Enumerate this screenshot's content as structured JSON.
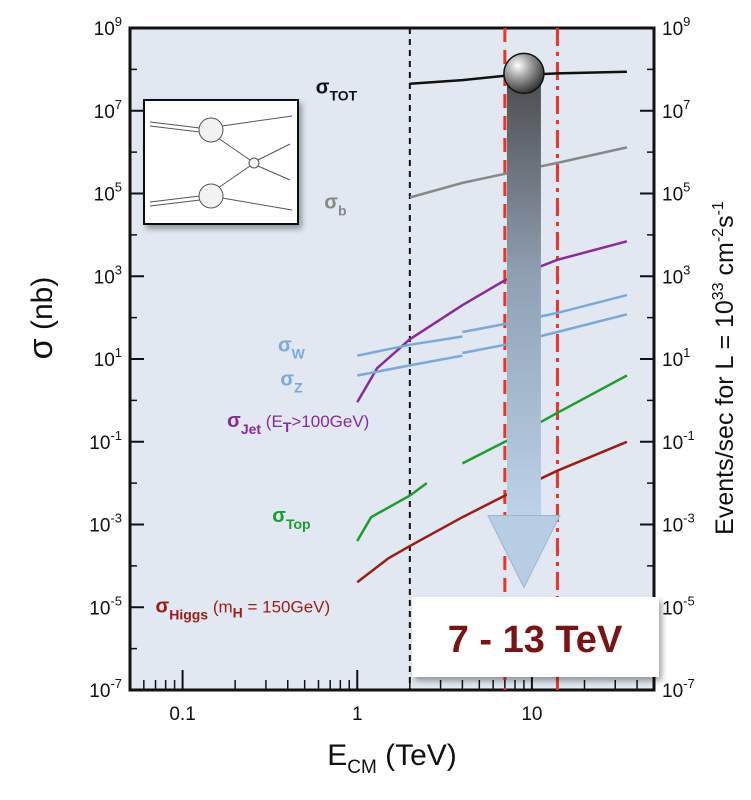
{
  "chart_data": {
    "type": "line",
    "title": "",
    "x_scale": "log",
    "y_scale": "log",
    "xlim": [
      0.05,
      50
    ],
    "ylim": [
      1e-07,
      1000000000.0
    ],
    "xlabel": {
      "main": "E",
      "sub": "CM",
      "unit": " (TeV)"
    },
    "ylabel_left": {
      "main": "σ",
      "unit": "  (nb)"
    },
    "ylabel_right": {
      "prefix": "Events/sec for L = 10",
      "exp1": "33",
      "mid": " cm",
      "exp2": "-2",
      "mid2": "s",
      "exp3": "-1"
    },
    "x_ticks": [
      {
        "value": 0.1,
        "label": "0.1"
      },
      {
        "value": 1,
        "label": "1"
      },
      {
        "value": 10,
        "label": "10"
      }
    ],
    "y_ticks": [
      {
        "value": 1000000000.0,
        "base": "10",
        "exp": "9"
      },
      {
        "value": 10000000.0,
        "base": "10",
        "exp": "7"
      },
      {
        "value": 100000.0,
        "base": "10",
        "exp": "5"
      },
      {
        "value": 1000.0,
        "base": "10",
        "exp": "3"
      },
      {
        "value": 10.0,
        "base": "10",
        "exp": "1"
      },
      {
        "value": 0.1,
        "base": "10",
        "exp": "-1"
      },
      {
        "value": 0.001,
        "base": "10",
        "exp": "-3"
      },
      {
        "value": 1e-05,
        "base": "10",
        "exp": "-5"
      },
      {
        "value": 1e-07,
        "base": "10",
        "exp": "-7"
      }
    ],
    "series": [
      {
        "key": "tot",
        "name": {
          "main": "σ",
          "sub": "TOT",
          "extra": ""
        },
        "color": "#111111",
        "segments": [
          [
            [
              2.0,
              45000000.0
            ],
            [
              4.0,
              55000000.0
            ],
            [
              7.0,
              70000000.0
            ],
            [
              14.0,
              80000000.0
            ],
            [
              35.0,
              88000000.0
            ]
          ]
        ]
      },
      {
        "key": "b",
        "name": {
          "main": "σ",
          "sub": "b",
          "extra": ""
        },
        "color": "#888888",
        "segments": [
          [
            [
              2.0,
              80000.0
            ],
            [
              4.0,
              180000.0
            ],
            [
              7.0,
              300000.0
            ],
            [
              14.0,
              550000.0
            ],
            [
              35.0,
              1300000.0
            ]
          ]
        ]
      },
      {
        "key": "jet",
        "name": {
          "main": "σ",
          "sub": "Jet",
          "extra": " (E",
          "extra_sub": "T",
          "extra2": ">100GeV)"
        },
        "color": "#8a2a9e",
        "segments": [
          [
            [
              1.0,
              0.9
            ],
            [
              1.3,
              6
            ],
            [
              2.0,
              30
            ],
            [
              4.0,
              200
            ],
            [
              7.0,
              800
            ],
            [
              14.0,
              2500
            ],
            [
              35.0,
              7000
            ]
          ]
        ]
      },
      {
        "key": "w",
        "name": {
          "main": "σ",
          "sub": "W",
          "extra": ""
        },
        "color": "#7aa9d8",
        "segments": [
          [
            [
              1.0,
              12
            ],
            [
              2.0,
              22
            ],
            [
              4.0,
              35
            ]
          ],
          [
            [
              4.0,
              45
            ],
            [
              7.0,
              70
            ],
            [
              14.0,
              130
            ],
            [
              35.0,
              350
            ]
          ]
        ]
      },
      {
        "key": "z",
        "name": {
          "main": "σ",
          "sub": "Z",
          "extra": ""
        },
        "color": "#7aa9d8",
        "segments": [
          [
            [
              1.0,
              4
            ],
            [
              2.0,
              7
            ],
            [
              4.0,
              12
            ]
          ],
          [
            [
              4.0,
              14
            ],
            [
              7.0,
              22
            ],
            [
              14.0,
              45
            ],
            [
              35.0,
              120
            ]
          ]
        ]
      },
      {
        "key": "top",
        "name": {
          "main": "σ",
          "sub": "Top",
          "extra": ""
        },
        "color": "#1b9e2e",
        "segments": [
          [
            [
              1.0,
              0.0004
            ],
            [
              1.2,
              0.0015
            ],
            [
              2.0,
              0.005
            ],
            [
              2.5,
              0.01
            ]
          ],
          [
            [
              4.0,
              0.03
            ],
            [
              7.0,
              0.1
            ],
            [
              14.0,
              0.5
            ],
            [
              35.0,
              4
            ]
          ]
        ]
      },
      {
        "key": "higgs",
        "name": {
          "main": "σ",
          "sub": "Higgs",
          "extra": " (m",
          "extra_sub": "H",
          "extra2": " = 150GeV)"
        },
        "color": "#9b1d16",
        "segments": [
          [
            [
              1.0,
              4e-05
            ],
            [
              1.5,
              0.00015
            ],
            [
              2.0,
              0.0003
            ],
            [
              4.0,
              0.0015
            ],
            [
              7.0,
              0.005
            ],
            [
              14.0,
              0.02
            ],
            [
              35.0,
              0.1
            ]
          ]
        ]
      }
    ],
    "vertical_lines": [
      {
        "x": 2.0,
        "style": "dashed",
        "color": "#111111"
      },
      {
        "x": 7.0,
        "style": "dashed",
        "color": "#e8342a"
      },
      {
        "x": 14.0,
        "style": "dashdot",
        "color": "#e8342a"
      }
    ],
    "annotation_arrow": {
      "x": 9.0,
      "y_from": 80000000.0,
      "y_to": 3e-05
    },
    "highlight_label": "7 - 13 TeV"
  }
}
